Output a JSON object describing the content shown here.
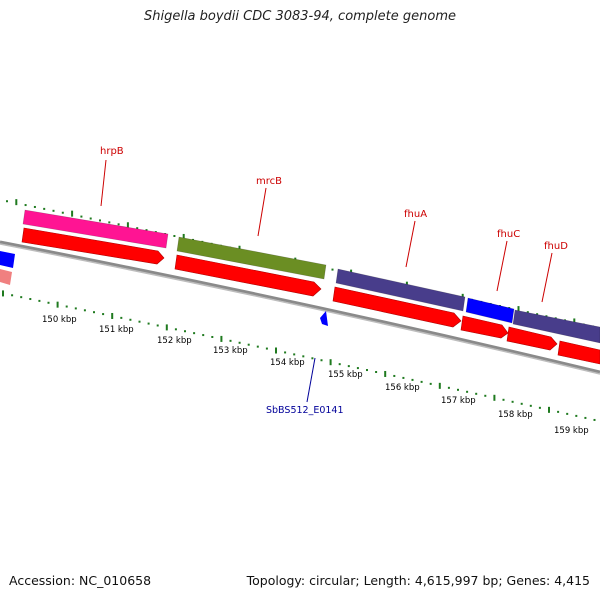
{
  "title": "Shigella boydii CDC 3083-94, complete genome",
  "footer": {
    "accession": "Accession: NC_010658",
    "topology": "Topology: circular; Length: 4,615,997 bp; Genes: 4,415"
  },
  "colors": {
    "backbone": "#8a8a8a",
    "tick": "#1f7a1f",
    "cds_arrow": "#ff0000",
    "gene_label": "#cc0000",
    "misc_label": "#000099"
  },
  "ruler_labels": [
    "150 kbp",
    "151 kbp",
    "152 kbp",
    "153 kbp",
    "154 kbp",
    "155 kbp",
    "156 kbp",
    "157 kbp",
    "158 kbp",
    "159 kbp"
  ],
  "genes": [
    {
      "label": "hrpB",
      "color": "#ff1493"
    },
    {
      "label": "mrcB",
      "color": "#6b8e23"
    },
    {
      "label": "fhuA",
      "color": "#483d8b"
    },
    {
      "label": "fhuC",
      "color": "#0000ff"
    },
    {
      "label": "fhuD",
      "color": "#483d8b"
    }
  ],
  "misc_features": [
    {
      "label": "SbBS512_E0141",
      "color": "#0000ff"
    }
  ]
}
